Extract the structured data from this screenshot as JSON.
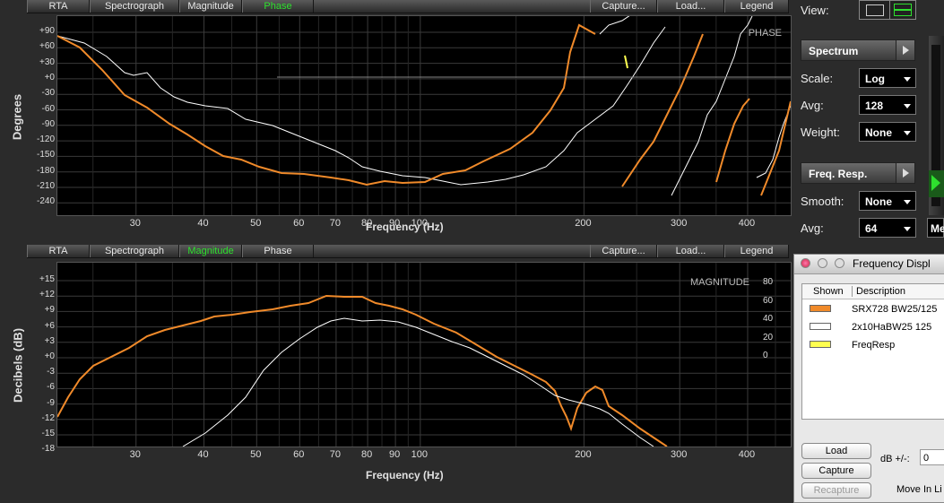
{
  "colors": {
    "orange": "#f08a2a",
    "white": "#ffffff",
    "yellow": "#ffff50",
    "grid": "#3a3a3a",
    "activeTab": "#2ee02e"
  },
  "top_panel": {
    "tabs": [
      "RTA",
      "Spectrograph",
      "Magnitude",
      "Phase"
    ],
    "active_tab": "Phase",
    "right_tabs": [
      "Capture...",
      "Load...",
      "Legend"
    ],
    "watermark": "PHASE",
    "ylabel": "Degrees",
    "xlabel": "Frequency (Hz)",
    "yticks": [
      "+90",
      "+60",
      "+30",
      "+0",
      "-30",
      "-60",
      "-90",
      "-120",
      "-150",
      "-180",
      "-210",
      "-240"
    ],
    "xticks": [
      "30",
      "40",
      "50",
      "60",
      "70",
      "80",
      "90",
      "100",
      "200",
      "300",
      "400"
    ]
  },
  "bottom_panel": {
    "tabs": [
      "RTA",
      "Spectrograph",
      "Magnitude",
      "Phase"
    ],
    "active_tab": "Magnitude",
    "right_tabs": [
      "Capture...",
      "Load...",
      "Legend"
    ],
    "watermark": "MAGNITUDE",
    "ylabel": "Decibels (dB)",
    "xlabel": "Frequency (Hz)",
    "yticks": [
      "+15",
      "+12",
      "+9",
      "+6",
      "+3",
      "+0",
      "-3",
      "-6",
      "-9",
      "-12",
      "-15",
      "-18"
    ],
    "yticks_right": [
      "80",
      "60",
      "40",
      "20",
      "0"
    ],
    "xticks": [
      "30",
      "40",
      "50",
      "60",
      "70",
      "80",
      "90",
      "100",
      "200",
      "300",
      "400"
    ]
  },
  "right_panel": {
    "view_label": "View:",
    "spectrum_btn": "Spectrum",
    "scale_label": "Scale:",
    "scale_value": "Log",
    "avg_label": "Avg:",
    "avg_value": "128",
    "weight_label": "Weight:",
    "weight_value": "None",
    "freqresp_btn": "Freq. Resp.",
    "smooth_label": "Smooth:",
    "smooth_value": "None",
    "avg2_label": "Avg:",
    "avg2_value": "64",
    "m_value": "Me"
  },
  "dialog": {
    "title": "Frequency Displ",
    "col_shown": "Shown",
    "col_desc": "Description",
    "rows": [
      {
        "color": "#f08a2a",
        "desc": "SRX728 BW25/125"
      },
      {
        "color": "#ffffff",
        "desc": "2x10HaBW25 125"
      },
      {
        "color": "#ffff50",
        "desc": "FreqResp"
      }
    ],
    "load": "Load",
    "capture": "Capture",
    "recapture": "Recapture",
    "db_label": "dB +/-:",
    "db_value": "0",
    "move_in": "Move In Li"
  }
}
